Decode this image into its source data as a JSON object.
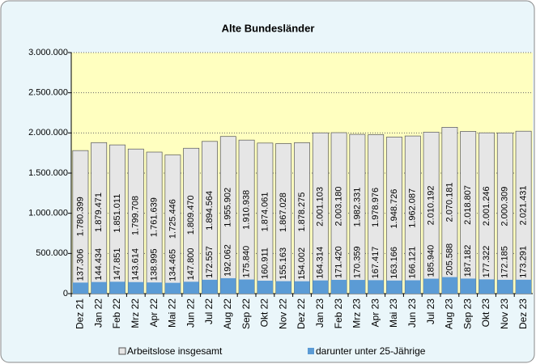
{
  "chart_data": {
    "type": "bar",
    "bar_mode": "overlap",
    "title": "Alte Bundesländer",
    "categories": [
      "Dez 21",
      "Jan 22",
      "Feb 22",
      "Mrz 22",
      "Apr 22",
      "Mai 22",
      "Jun 22",
      "Jul 22",
      "Aug 22",
      "Sep 22",
      "Okt 22",
      "Nov 22",
      "Dez 22",
      "Jan 23",
      "Feb 23",
      "Mrz 23",
      "Apr 23",
      "Mai 23",
      "Jun 23",
      "Jul 23",
      "Aug 23",
      "Sep 23",
      "Okt 23",
      "Nov 23",
      "Dez 23"
    ],
    "series": [
      {
        "name": "Arbeitslose insgesamt",
        "color": "#e6e6e6",
        "values": [
          1780399,
          1879471,
          1851011,
          1799708,
          1761639,
          1725446,
          1809470,
          1894564,
          1955902,
          1910938,
          1874061,
          1867028,
          1878275,
          2001103,
          2003180,
          1982331,
          1978976,
          1948726,
          1962087,
          2010192,
          2070181,
          2018807,
          2001246,
          2000309,
          2021431
        ],
        "value_labels": [
          "1.780.399",
          "1.879.471",
          "1.851.011",
          "1.799.708",
          "1.761.639",
          "1.725.446",
          "1.809.470",
          "1.894.564",
          "1.955.902",
          "1.910.938",
          "1.874.061",
          "1.867.028",
          "1.878.275",
          "2.001.103",
          "2.003.180",
          "1.982.331",
          "1.978.976",
          "1.948.726",
          "1.962.087",
          "2.010.192",
          "2.070.181",
          "2.018.807",
          "2.001.246",
          "2.000.309",
          "2.021.431"
        ]
      },
      {
        "name": "darunter unter 25-Jährige",
        "color": "#5b9bd5",
        "values": [
          137306,
          144434,
          147851,
          143614,
          138995,
          134465,
          147800,
          172557,
          192062,
          175840,
          160911,
          155163,
          154002,
          164314,
          171420,
          170359,
          167417,
          163166,
          166121,
          185940,
          205588,
          187182,
          177322,
          172185,
          173291
        ],
        "value_labels": [
          "137.306",
          "144.434",
          "147.851",
          "143.614",
          "138.995",
          "134.465",
          "147.800",
          "172.557",
          "192.062",
          "175.840",
          "160.911",
          "155.163",
          "154.002",
          "164.314",
          "171.420",
          "170.359",
          "167.417",
          "163.166",
          "166.121",
          "185.940",
          "205.588",
          "187.182",
          "177.322",
          "172.185",
          "173.291"
        ]
      }
    ],
    "ylim": [
      0,
      3000000
    ],
    "yticks": [
      {
        "value": 0,
        "label": "0"
      },
      {
        "value": 500000,
        "label": "500.000"
      },
      {
        "value": 1000000,
        "label": "1.000.000"
      },
      {
        "value": 1500000,
        "label": "1.500.000"
      },
      {
        "value": 2000000,
        "label": "2.000.000"
      },
      {
        "value": 2500000,
        "label": "2.500.000"
      },
      {
        "value": 3000000,
        "label": "3.000.000"
      }
    ],
    "grid": true,
    "legend": "bottom"
  }
}
